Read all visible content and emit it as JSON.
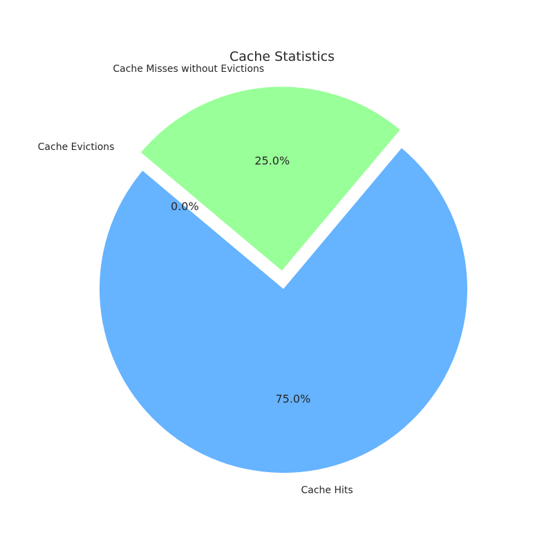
{
  "chart_data": {
    "type": "pie",
    "title": "Cache Statistics",
    "labels": [
      "Cache Hits",
      "Cache Misses without Evictions",
      "Cache Evictions"
    ],
    "values": [
      75,
      25,
      0
    ],
    "percent_labels": [
      "75.0%",
      "25.0%",
      "0.0%"
    ],
    "colors": [
      "#66b3ff",
      "#99ff99",
      "#ff9999"
    ],
    "explode": [
      0,
      0.1,
      0.1
    ],
    "start_angle_deg": 140,
    "direction": "counterclockwise"
  }
}
